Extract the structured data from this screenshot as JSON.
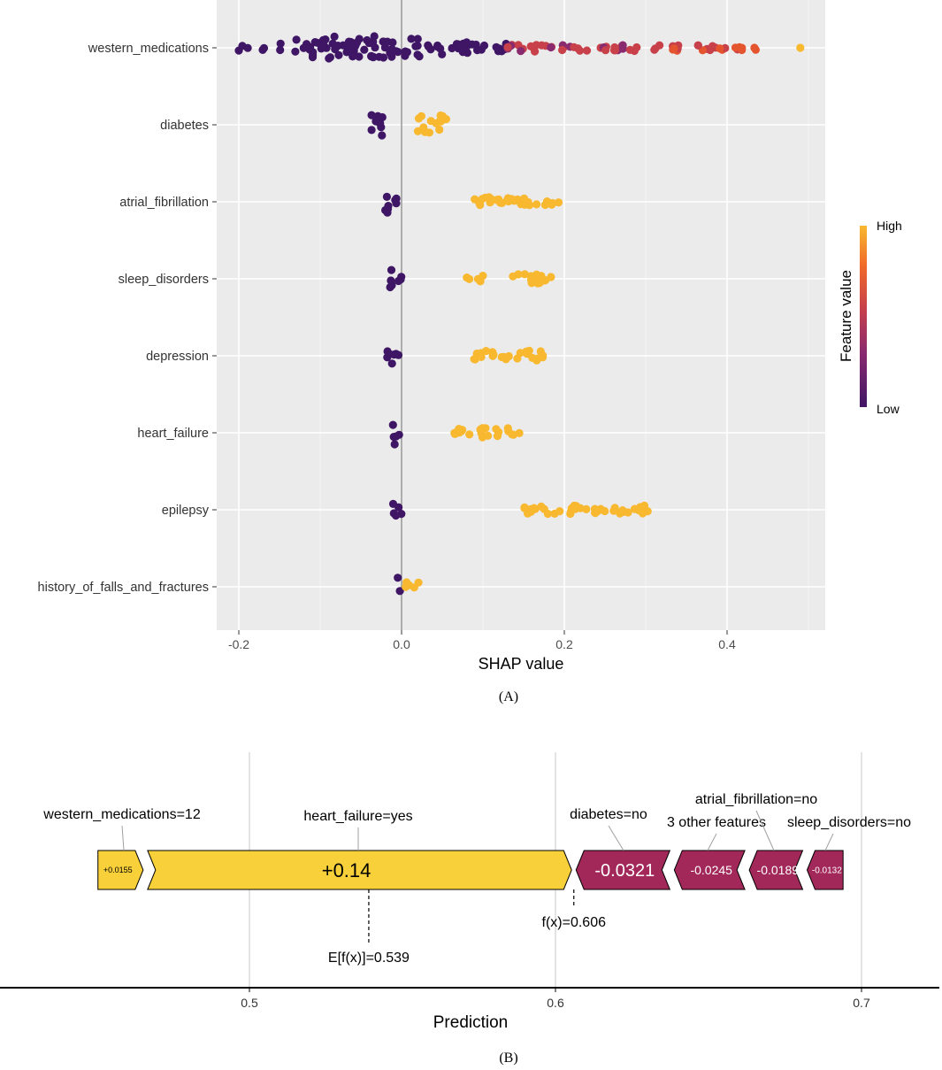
{
  "chart_data": [
    {
      "type": "scatter",
      "subtype": "shap-beeswarm",
      "panel_label": "(A)",
      "xlabel": "SHAP value",
      "xlim": [
        -0.2,
        0.52
      ],
      "xticks": [
        -0.2,
        0.0,
        0.2,
        0.4
      ],
      "xtick_labels": [
        "-0.2",
        "0.0",
        "0.2",
        "0.4"
      ],
      "grid": true,
      "zero_line": 0.0,
      "legend": {
        "title": "Feature value",
        "high_label": "High",
        "low_label": "Low",
        "placement": "right",
        "colors": [
          "#3f1665",
          "#8a2a6f",
          "#c8414a",
          "#f06a2a",
          "#f8b82f"
        ]
      },
      "features": [
        {
          "name": "western_medications",
          "low_clusters": [
            [
              -0.2,
              -0.185,
              0.3
            ],
            [
              -0.172,
              -0.168,
              0.5
            ],
            [
              -0.152,
              -0.148,
              1.3
            ],
            [
              -0.132,
              -0.128,
              1.5
            ],
            [
              -0.122,
              -0.108,
              2.0
            ],
            [
              -0.108,
              -0.08,
              2.2
            ],
            [
              -0.08,
              -0.055,
              2.0
            ],
            [
              -0.055,
              -0.035,
              1.8
            ],
            [
              -0.035,
              -0.015,
              2.0
            ],
            [
              -0.015,
              0.0,
              1.6
            ],
            [
              0.002,
              0.022,
              1.6
            ],
            [
              0.028,
              0.05,
              1.0
            ],
            [
              0.05,
              0.09,
              0.8
            ],
            [
              0.09,
              0.13,
              0.5
            ]
          ],
          "high_clusters": [
            [
              0.13,
              0.2,
              0.4
            ],
            [
              0.2,
              0.29,
              0.3
            ],
            [
              0.31,
              0.35,
              0.3
            ],
            [
              0.36,
              0.44,
              0.2
            ]
          ],
          "mid_color": "#c8414a",
          "extreme_points": [
            [
              0.49,
              0
            ]
          ]
        },
        {
          "name": "diabetes",
          "low_clusters": [
            [
              -0.038,
              -0.02,
              2.0
            ]
          ],
          "high_clusters": [
            [
              0.02,
              0.055,
              1.6
            ]
          ]
        },
        {
          "name": "atrial_fibrillation",
          "low_clusters": [
            [
              -0.025,
              -0.015,
              2.0
            ],
            [
              -0.015,
              -0.005,
              0.6
            ]
          ],
          "high_clusters": [
            [
              0.085,
              0.2,
              0.6
            ]
          ]
        },
        {
          "name": "sleep_disorders",
          "low_clusters": [
            [
              -0.018,
              -0.01,
              2.0
            ],
            [
              -0.01,
              0.0,
              0.6
            ]
          ],
          "high_clusters": [
            [
              0.078,
              0.1,
              0.3
            ],
            [
              0.125,
              0.185,
              0.6
            ]
          ]
        },
        {
          "name": "depression",
          "low_clusters": [
            [
              -0.018,
              -0.01,
              2.0
            ],
            [
              -0.01,
              0.0,
              0.6
            ]
          ],
          "high_clusters": [
            [
              0.088,
              0.175,
              0.7
            ]
          ]
        },
        {
          "name": "heart_failure",
          "low_clusters": [
            [
              -0.015,
              -0.008,
              2.0
            ],
            [
              -0.008,
              0.0,
              0.6
            ]
          ],
          "high_clusters": [
            [
              0.06,
              0.145,
              0.6
            ]
          ]
        },
        {
          "name": "epilepsy",
          "low_clusters": [
            [
              -0.012,
              -0.005,
              2.0
            ],
            [
              -0.005,
              0.002,
              0.8
            ]
          ],
          "high_clusters": [
            [
              0.15,
              0.31,
              0.5
            ]
          ]
        },
        {
          "name": "history_of_falls_and_fractures",
          "low_clusters": [
            [
              -0.005,
              -0.001,
              2.0
            ]
          ],
          "high_clusters": [
            [
              0.002,
              0.022,
              0.6
            ]
          ]
        }
      ]
    },
    {
      "type": "bar",
      "subtype": "shap-force-plot",
      "panel_label": "(B)",
      "xlabel": "Prediction",
      "xlim": [
        0.43,
        0.74
      ],
      "xticks": [
        0.5,
        0.6,
        0.7
      ],
      "xtick_labels": [
        "0.5",
        "0.6",
        "0.7"
      ],
      "base_value": 0.539,
      "base_label": "E[f(x)]=0.539",
      "output_value": 0.606,
      "output_label": "f(x)=0.606",
      "positive_color": "#f8d03a",
      "negative_color": "#a3285a",
      "segments": [
        {
          "feature_label": "western_medications=12",
          "value": 0.0155,
          "value_label": "+0.0155",
          "sign": "positive"
        },
        {
          "feature_label": "heart_failure=yes",
          "value": 0.14,
          "value_label": "+0.14",
          "sign": "positive"
        },
        {
          "feature_label": "diabetes=no",
          "value": -0.0321,
          "value_label": "-0.0321",
          "sign": "negative"
        },
        {
          "feature_label": "3 other features",
          "value": -0.0245,
          "value_label": "-0.0245",
          "sign": "negative"
        },
        {
          "feature_label": "atrial_fibrillation=no",
          "value": -0.0189,
          "value_label": "-0.0189",
          "sign": "negative"
        },
        {
          "feature_label": "sleep_disorders=no",
          "value": -0.0132,
          "value_label": "-0.0132",
          "sign": "negative"
        }
      ]
    }
  ]
}
